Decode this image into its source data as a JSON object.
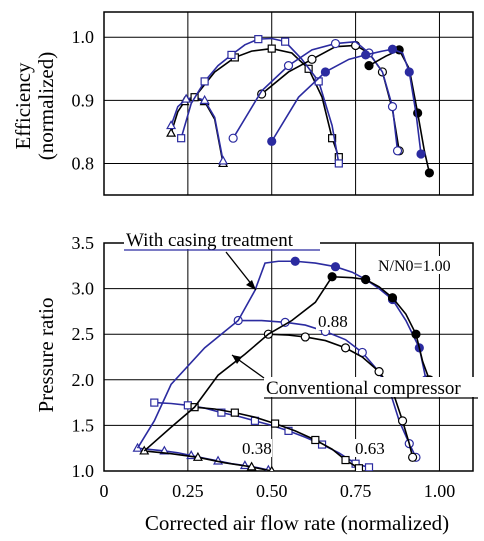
{
  "colors": {
    "casing": "#2b2ba0",
    "conventional": "#000000",
    "grid": "#000000"
  },
  "chart_data": [
    {
      "type": "line",
      "panel": "efficiency",
      "title": "",
      "xlabel": "",
      "ylabel_line1": "Efficiency",
      "ylabel_line2": "(normalized)",
      "xlim": [
        0,
        1.1
      ],
      "ylim": [
        0.75,
        1.04
      ],
      "grid": true,
      "yticks": [
        {
          "value": 0.8,
          "label": "0.8"
        },
        {
          "value": 0.9,
          "label": "0.9"
        },
        {
          "value": 1.0,
          "label": "1.0"
        }
      ],
      "series": [
        {
          "speed": "0.38",
          "group": "conventional",
          "marker": "triangle",
          "points": [
            [
              0.2,
              0.848
            ],
            [
              0.22,
              0.882
            ],
            [
              0.24,
              0.898
            ],
            [
              0.27,
              0.905
            ],
            [
              0.3,
              0.898
            ],
            [
              0.33,
              0.87
            ],
            [
              0.355,
              0.8
            ]
          ]
        },
        {
          "speed": "0.38",
          "group": "casing",
          "marker": "triangle",
          "points": [
            [
              0.2,
              0.86
            ],
            [
              0.22,
              0.89
            ],
            [
              0.245,
              0.902
            ],
            [
              0.27,
              0.905
            ],
            [
              0.3,
              0.9
            ],
            [
              0.33,
              0.873
            ],
            [
              0.355,
              0.804
            ]
          ]
        },
        {
          "speed": "0.63",
          "group": "conventional",
          "marker": "square",
          "points": [
            [
              0.27,
              0.905
            ],
            [
              0.33,
              0.945
            ],
            [
              0.39,
              0.968
            ],
            [
              0.44,
              0.978
            ],
            [
              0.5,
              0.982
            ],
            [
              0.56,
              0.975
            ],
            [
              0.61,
              0.95
            ],
            [
              0.65,
              0.905
            ],
            [
              0.68,
              0.84
            ],
            [
              0.7,
              0.81
            ]
          ]
        },
        {
          "speed": "0.63",
          "group": "casing",
          "marker": "square",
          "points": [
            [
              0.23,
              0.84
            ],
            [
              0.26,
              0.895
            ],
            [
              0.3,
              0.93
            ],
            [
              0.34,
              0.955
            ],
            [
              0.38,
              0.972
            ],
            [
              0.42,
              0.988
            ],
            [
              0.46,
              0.997
            ],
            [
              0.5,
              0.998
            ],
            [
              0.54,
              0.993
            ],
            [
              0.59,
              0.965
            ],
            [
              0.64,
              0.93
            ],
            [
              0.68,
              0.86
            ],
            [
              0.7,
              0.8
            ]
          ]
        },
        {
          "speed": "0.88",
          "group": "conventional",
          "marker": "circle",
          "points": [
            [
              0.47,
              0.91
            ],
            [
              0.55,
              0.945
            ],
            [
              0.62,
              0.965
            ],
            [
              0.69,
              0.985
            ],
            [
              0.75,
              0.987
            ],
            [
              0.79,
              0.975
            ],
            [
              0.83,
              0.945
            ],
            [
              0.86,
              0.885
            ],
            [
              0.88,
              0.82
            ]
          ]
        },
        {
          "speed": "0.88",
          "group": "casing",
          "marker": "circle",
          "points": [
            [
              0.385,
              0.84
            ],
            [
              0.47,
              0.915
            ],
            [
              0.55,
              0.955
            ],
            [
              0.62,
              0.98
            ],
            [
              0.69,
              0.99
            ],
            [
              0.75,
              0.993
            ],
            [
              0.79,
              0.975
            ],
            [
              0.83,
              0.945
            ],
            [
              0.86,
              0.89
            ],
            [
              0.875,
              0.82
            ]
          ]
        },
        {
          "speed": "1.00",
          "group": "conventional",
          "marker": "filled-circle",
          "points": [
            [
              0.79,
              0.955
            ],
            [
              0.84,
              0.97
            ],
            [
              0.88,
              0.98
            ],
            [
              0.91,
              0.95
            ],
            [
              0.935,
              0.88
            ],
            [
              0.955,
              0.82
            ],
            [
              0.97,
              0.785
            ]
          ]
        },
        {
          "speed": "1.00",
          "group": "casing",
          "marker": "filled-circle",
          "points": [
            [
              0.5,
              0.835
            ],
            [
              0.58,
              0.905
            ],
            [
              0.66,
              0.945
            ],
            [
              0.73,
              0.965
            ],
            [
              0.78,
              0.972
            ],
            [
              0.83,
              0.978
            ],
            [
              0.86,
              0.981
            ],
            [
              0.89,
              0.975
            ],
            [
              0.91,
              0.945
            ],
            [
              0.93,
              0.88
            ],
            [
              0.945,
              0.815
            ]
          ]
        }
      ]
    },
    {
      "type": "line",
      "panel": "pressure",
      "title": "",
      "xlabel": "Corrected air flow rate (normalized)",
      "ylabel": "Pressure ratio",
      "xlim": [
        0,
        1.1
      ],
      "ylim": [
        1.0,
        3.5
      ],
      "grid": true,
      "xticks": [
        {
          "value": 0,
          "label": "0"
        },
        {
          "value": 0.25,
          "label": "0.25"
        },
        {
          "value": 0.5,
          "label": "0.50"
        },
        {
          "value": 0.75,
          "label": "0.75"
        },
        {
          "value": 1.0,
          "label": "1.00"
        }
      ],
      "yticks": [
        {
          "value": 1.0,
          "label": "1.0"
        },
        {
          "value": 1.5,
          "label": "1.5"
        },
        {
          "value": 2.0,
          "label": "2.0"
        },
        {
          "value": 2.5,
          "label": "2.5"
        },
        {
          "value": 3.0,
          "label": "3.0"
        },
        {
          "value": 3.5,
          "label": "3.5"
        }
      ],
      "annotations": {
        "casing": "With casing treatment",
        "conventional": "Conventional compressor",
        "speed_100": "N/N0=1.00",
        "speed_88": "0.88",
        "speed_63": "0.63",
        "speed_38": "0.38"
      },
      "series": [
        {
          "speed": "0.38",
          "group": "casing",
          "marker": "triangle",
          "points": [
            [
              0.1,
              1.25
            ],
            [
              0.14,
              1.235
            ],
            [
              0.18,
              1.22
            ],
            [
              0.22,
              1.2
            ],
            [
              0.26,
              1.17
            ],
            [
              0.3,
              1.14
            ],
            [
              0.34,
              1.11
            ],
            [
              0.38,
              1.08
            ],
            [
              0.42,
              1.06
            ],
            [
              0.46,
              1.035
            ],
            [
              0.49,
              1.01
            ]
          ]
        },
        {
          "speed": "0.38",
          "group": "conventional",
          "marker": "triangle",
          "points": [
            [
              0.12,
              1.22
            ],
            [
              0.2,
              1.19
            ],
            [
              0.28,
              1.15
            ],
            [
              0.36,
              1.09
            ],
            [
              0.44,
              1.045
            ],
            [
              0.5,
              1.0
            ]
          ]
        },
        {
          "speed": "0.63",
          "group": "casing",
          "marker": "square",
          "points": [
            [
              0.15,
              1.75
            ],
            [
              0.2,
              1.74
            ],
            [
              0.25,
              1.72
            ],
            [
              0.3,
              1.69
            ],
            [
              0.35,
              1.64
            ],
            [
              0.4,
              1.6
            ],
            [
              0.45,
              1.55
            ],
            [
              0.5,
              1.5
            ],
            [
              0.55,
              1.44
            ],
            [
              0.6,
              1.37
            ],
            [
              0.65,
              1.29
            ],
            [
              0.7,
              1.2
            ],
            [
              0.75,
              1.08
            ],
            [
              0.79,
              1.04
            ]
          ]
        },
        {
          "speed": "0.63",
          "group": "conventional",
          "marker": "square",
          "points": [
            [
              0.27,
              1.7
            ],
            [
              0.33,
              1.68
            ],
            [
              0.39,
              1.64
            ],
            [
              0.45,
              1.59
            ],
            [
              0.51,
              1.52
            ],
            [
              0.57,
              1.44
            ],
            [
              0.63,
              1.34
            ],
            [
              0.68,
              1.24
            ],
            [
              0.72,
              1.12
            ],
            [
              0.76,
              1.03
            ]
          ]
        },
        {
          "speed": "0.88",
          "group": "casing",
          "marker": "circle",
          "points": [
            [
              0.4,
              2.65
            ],
            [
              0.47,
              2.65
            ],
            [
              0.54,
              2.63
            ],
            [
              0.6,
              2.6
            ],
            [
              0.66,
              2.53
            ],
            [
              0.72,
              2.44
            ],
            [
              0.77,
              2.3
            ],
            [
              0.81,
              2.13
            ],
            [
              0.85,
              1.9
            ],
            [
              0.88,
              1.55
            ],
            [
              0.91,
              1.3
            ],
            [
              0.93,
              1.15
            ]
          ]
        },
        {
          "speed": "0.88",
          "group": "conventional",
          "marker": "circle",
          "points": [
            [
              0.49,
              2.5
            ],
            [
              0.55,
              2.49
            ],
            [
              0.6,
              2.47
            ],
            [
              0.66,
              2.43
            ],
            [
              0.72,
              2.35
            ],
            [
              0.77,
              2.25
            ],
            [
              0.82,
              2.09
            ],
            [
              0.86,
              1.88
            ],
            [
              0.89,
              1.55
            ],
            [
              0.91,
              1.3
            ],
            [
              0.92,
              1.15
            ]
          ]
        },
        {
          "speed": "1.00",
          "group": "casing",
          "marker": "filled-circle",
          "points": [
            [
              0.57,
              3.3
            ],
            [
              0.63,
              3.28
            ],
            [
              0.69,
              3.24
            ],
            [
              0.74,
              3.18
            ],
            [
              0.78,
              3.1
            ],
            [
              0.82,
              3.0
            ],
            [
              0.86,
              2.88
            ],
            [
              0.9,
              2.65
            ],
            [
              0.94,
              2.35
            ],
            [
              0.96,
              2.0
            ]
          ]
        },
        {
          "speed": "1.00",
          "group": "conventional",
          "marker": "filled-circle",
          "points": [
            [
              0.68,
              3.13
            ],
            [
              0.74,
              3.12
            ],
            [
              0.78,
              3.1
            ],
            [
              0.82,
              3.02
            ],
            [
              0.86,
              2.9
            ],
            [
              0.9,
              2.72
            ],
            [
              0.93,
              2.5
            ],
            [
              0.95,
              2.2
            ],
            [
              0.97,
              2.0
            ]
          ]
        },
        {
          "group": "casing",
          "role": "surge",
          "marker": "square",
          "points": [
            [
              0.1,
              1.25
            ],
            [
              0.15,
              1.55
            ],
            [
              0.2,
              1.95
            ],
            [
              0.3,
              2.35
            ],
            [
              0.4,
              2.65
            ],
            [
              0.45,
              2.98
            ],
            [
              0.48,
              3.28
            ],
            [
              0.52,
              3.3
            ],
            [
              0.57,
              3.3
            ]
          ]
        },
        {
          "group": "conventional",
          "role": "surge",
          "marker": "circle",
          "points": [
            [
              0.12,
              1.22
            ],
            [
              0.2,
              1.48
            ],
            [
              0.27,
              1.7
            ],
            [
              0.34,
              2.05
            ],
            [
              0.42,
              2.28
            ],
            [
              0.49,
              2.5
            ],
            [
              0.56,
              2.65
            ],
            [
              0.63,
              2.85
            ],
            [
              0.68,
              3.13
            ]
          ]
        }
      ]
    }
  ]
}
